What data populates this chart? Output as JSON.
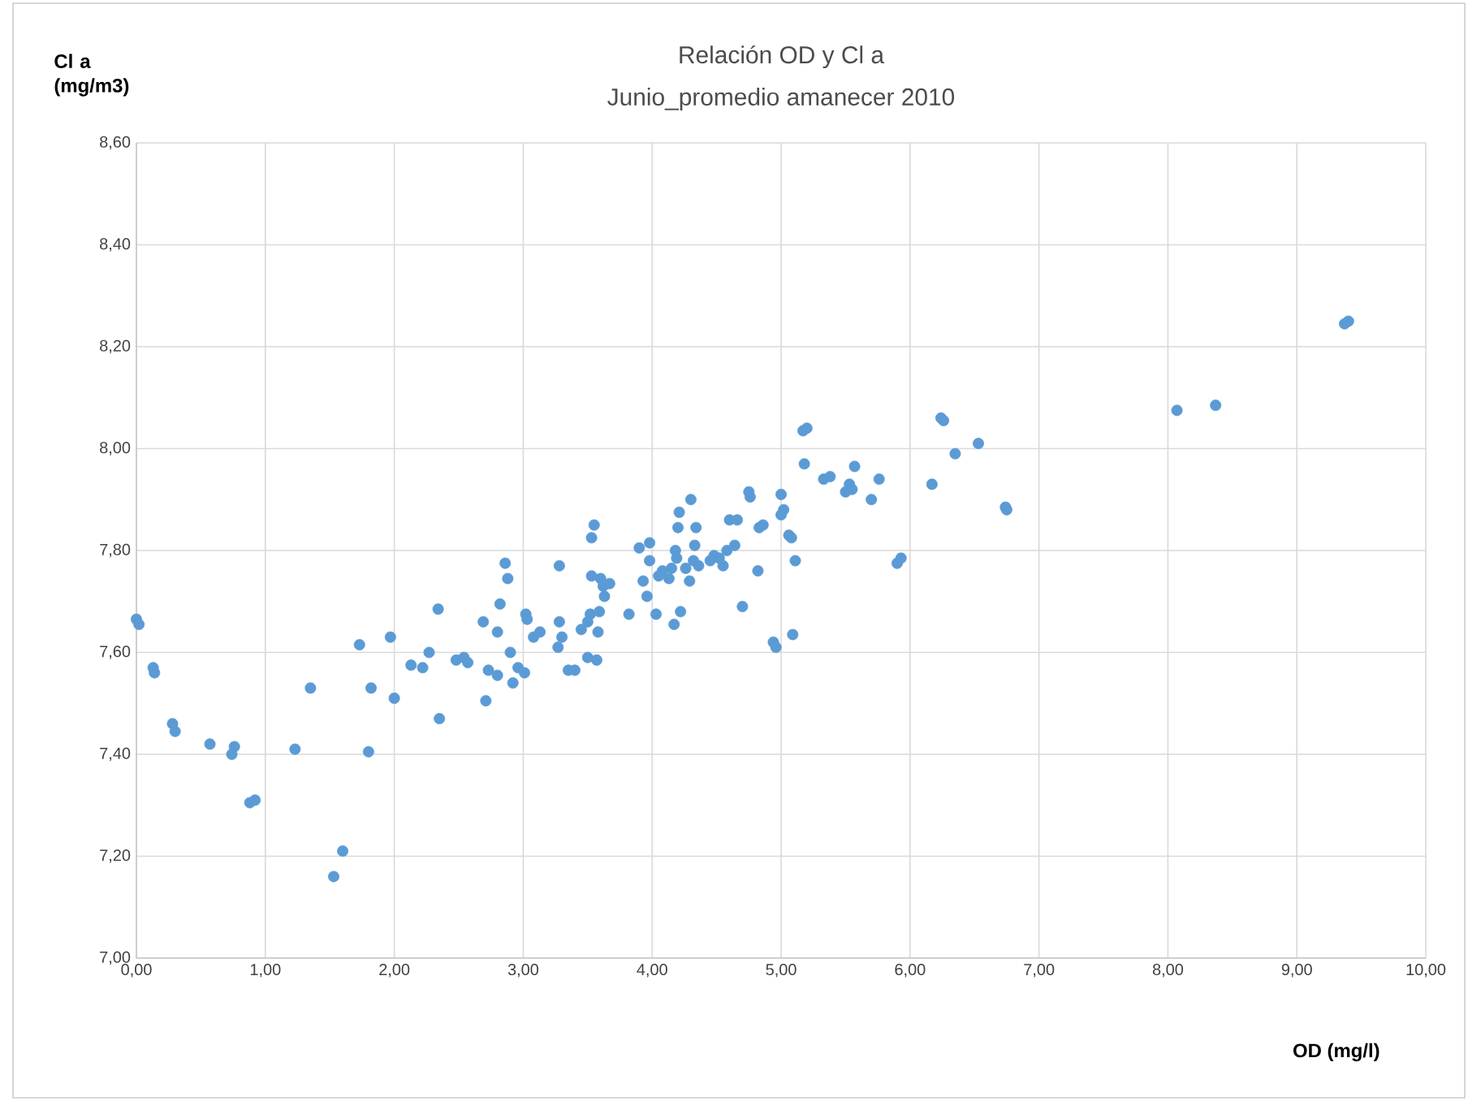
{
  "chart_data": {
    "type": "scatter",
    "title": "Relación OD y Cl a",
    "subtitle": "Junio_promedio amanecer 2010",
    "xlabel": "OD  (mg/l)",
    "ylabel": "Cl a (mg/m3)",
    "xlim": [
      0,
      10
    ],
    "ylim": [
      7.0,
      8.6
    ],
    "xticks": [
      {
        "value": 0,
        "label": "0,00"
      },
      {
        "value": 1,
        "label": "1,00"
      },
      {
        "value": 2,
        "label": "2,00"
      },
      {
        "value": 3,
        "label": "3,00"
      },
      {
        "value": 4,
        "label": "4,00"
      },
      {
        "value": 5,
        "label": "5,00"
      },
      {
        "value": 6,
        "label": "6,00"
      },
      {
        "value": 7,
        "label": "7,00"
      },
      {
        "value": 8,
        "label": "8,00"
      },
      {
        "value": 9,
        "label": "9,00"
      },
      {
        "value": 10,
        "label": "10,00"
      }
    ],
    "yticks": [
      {
        "value": 7.0,
        "label": "7,00"
      },
      {
        "value": 7.2,
        "label": "7,20"
      },
      {
        "value": 7.4,
        "label": "7,40"
      },
      {
        "value": 7.6,
        "label": "7,60"
      },
      {
        "value": 7.8,
        "label": "7,80"
      },
      {
        "value": 8.0,
        "label": "8,00"
      },
      {
        "value": 8.2,
        "label": "8,20"
      },
      {
        "value": 8.4,
        "label": "8,40"
      },
      {
        "value": 8.6,
        "label": "8,60"
      }
    ],
    "grid": true,
    "marker": "circle",
    "series": [
      {
        "color": "#5b9bd5",
        "x": [
          0.0,
          0.02,
          0.13,
          0.14,
          0.28,
          0.3,
          0.57,
          0.74,
          0.76,
          0.88,
          0.92,
          1.23,
          1.35,
          1.53,
          1.6,
          1.73,
          1.8,
          1.82,
          1.97,
          2.0,
          2.13,
          2.22,
          2.27,
          2.34,
          2.35,
          2.48,
          2.54,
          2.57,
          2.69,
          2.71,
          2.73,
          2.8,
          2.8,
          2.82,
          2.86,
          2.88,
          2.9,
          2.92,
          2.96,
          3.01,
          3.02,
          3.03,
          3.08,
          3.13,
          3.27,
          3.28,
          3.28,
          3.3,
          3.35,
          3.4,
          3.45,
          3.5,
          3.5,
          3.52,
          3.53,
          3.53,
          3.55,
          3.57,
          3.58,
          3.59,
          3.6,
          3.62,
          3.63,
          3.67,
          3.82,
          3.9,
          3.93,
          3.96,
          3.98,
          3.98,
          4.03,
          4.05,
          4.08,
          4.13,
          4.15,
          4.17,
          4.18,
          4.19,
          4.2,
          4.21,
          4.22,
          4.26,
          4.29,
          4.3,
          4.32,
          4.33,
          4.34,
          4.36,
          4.45,
          4.48,
          4.52,
          4.55,
          4.58,
          4.6,
          4.64,
          4.66,
          4.7,
          4.75,
          4.76,
          4.82,
          4.83,
          4.86,
          4.94,
          4.96,
          5.0,
          5.0,
          5.02,
          5.06,
          5.08,
          5.09,
          5.11,
          5.17,
          5.18,
          5.2,
          5.33,
          5.38,
          5.5,
          5.53,
          5.55,
          5.57,
          5.7,
          5.76,
          5.9,
          5.93,
          6.17,
          6.24,
          6.26,
          6.35,
          6.53,
          6.74,
          6.75,
          8.07,
          8.37,
          9.37,
          9.4
        ],
        "values": [
          7.665,
          7.655,
          7.57,
          7.56,
          7.46,
          7.445,
          7.42,
          7.4,
          7.415,
          7.305,
          7.31,
          7.41,
          7.53,
          7.16,
          7.21,
          7.615,
          7.405,
          7.53,
          7.63,
          7.51,
          7.575,
          7.57,
          7.6,
          7.685,
          7.47,
          7.585,
          7.59,
          7.58,
          7.66,
          7.505,
          7.565,
          7.555,
          7.64,
          7.695,
          7.775,
          7.745,
          7.6,
          7.54,
          7.57,
          7.56,
          7.675,
          7.665,
          7.63,
          7.64,
          7.61,
          7.66,
          7.77,
          7.63,
          7.565,
          7.565,
          7.645,
          7.66,
          7.59,
          7.675,
          7.75,
          7.825,
          7.85,
          7.585,
          7.64,
          7.68,
          7.745,
          7.73,
          7.71,
          7.735,
          7.675,
          7.805,
          7.74,
          7.71,
          7.815,
          7.78,
          7.675,
          7.75,
          7.76,
          7.745,
          7.765,
          7.655,
          7.8,
          7.785,
          7.845,
          7.875,
          7.68,
          7.765,
          7.74,
          7.9,
          7.78,
          7.81,
          7.845,
          7.77,
          7.78,
          7.79,
          7.785,
          7.77,
          7.8,
          7.86,
          7.81,
          7.86,
          7.69,
          7.915,
          7.905,
          7.76,
          7.845,
          7.85,
          7.62,
          7.61,
          7.91,
          7.87,
          7.88,
          7.83,
          7.825,
          7.635,
          7.78,
          8.035,
          7.97,
          8.04,
          7.94,
          7.945,
          7.915,
          7.93,
          7.92,
          7.965,
          7.9,
          7.94,
          7.775,
          7.785,
          7.93,
          8.06,
          8.055,
          7.99,
          8.01,
          7.885,
          7.88,
          8.075,
          8.085,
          8.245,
          8.25
        ]
      }
    ]
  }
}
